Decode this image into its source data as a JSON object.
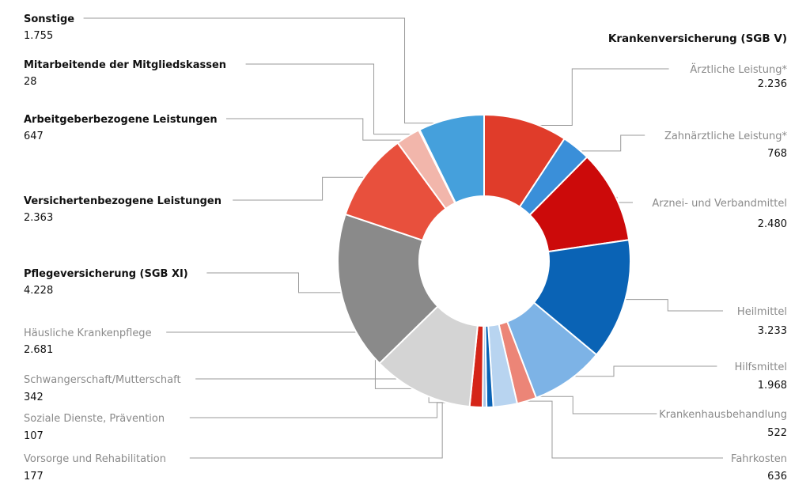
{
  "chart_data": {
    "type": "pie",
    "variant": "donut",
    "title": "Krankenversicherung (SGB V)",
    "segments": [
      {
        "name": "Ärztliche Leistung*",
        "value_label": "2.236",
        "value": 2236,
        "color": "#e03c2a",
        "label_side": "right",
        "bold": false
      },
      {
        "name": "Zahnärztliche Leistung*",
        "value_label": "768",
        "value": 768,
        "color": "#3a8fd9",
        "label_side": "right",
        "bold": false
      },
      {
        "name": "Arznei- und Verbandmittel",
        "value_label": "2.480",
        "value": 2480,
        "color": "#cc0a0a",
        "label_side": "right",
        "bold": false
      },
      {
        "name": "Heilmittel",
        "value_label": "3.233",
        "value": 3233,
        "color": "#0a63b5",
        "label_side": "right",
        "bold": false
      },
      {
        "name": "Hilfsmittel",
        "value_label": "1.968",
        "value": 1968,
        "color": "#7db3e6",
        "label_side": "right",
        "bold": false
      },
      {
        "name": "Krankenhausbehandlung",
        "value_label": "522",
        "value": 522,
        "color": "#ec8577",
        "label_side": "right",
        "bold": false
      },
      {
        "name": "Fahrkosten",
        "value_label": "636",
        "value": 636,
        "color": "#b8d4f0",
        "label_side": "right",
        "bold": false
      },
      {
        "name": "Vorsorge und Rehabilitation",
        "value_label": "177",
        "value": 177,
        "color": "#0a63b5",
        "label_side": "left",
        "bold": false
      },
      {
        "name": "Soziale Dienste, Prävention",
        "value_label": "107",
        "value": 107,
        "color": "#aac6e8",
        "label_side": "left",
        "bold": false
      },
      {
        "name": "Schwangerschaft/Mutterschaft",
        "value_label": "342",
        "value": 342,
        "color": "#d52518",
        "label_side": "left",
        "bold": false
      },
      {
        "name": "Häusliche Krankenpflege",
        "value_label": "2.681",
        "value": 2681,
        "color": "#d4d4d4",
        "label_side": "left",
        "bold": false
      },
      {
        "name": "Pflegeversicherung (SGB XI)",
        "value_label": "4.228",
        "value": 4228,
        "color": "#8a8a8a",
        "label_side": "left",
        "bold": true
      },
      {
        "name": "Versichertenbezogene Leistungen",
        "value_label": "2.363",
        "value": 2363,
        "color": "#e8503d",
        "label_side": "left",
        "bold": true
      },
      {
        "name": "Arbeitgeberbezogene Leistungen",
        "value_label": "647",
        "value": 647,
        "color": "#f2b6ab",
        "label_side": "left",
        "bold": true
      },
      {
        "name": "Mitarbeitende der Mitgliedskassen",
        "value_label": "28",
        "value": 28,
        "color": "#e03c2a",
        "label_side": "left",
        "bold": true
      },
      {
        "name": "Sonstige",
        "value_label": "1.755",
        "value": 1755,
        "color": "#45a0dc",
        "label_side": "left",
        "bold": true
      }
    ]
  }
}
